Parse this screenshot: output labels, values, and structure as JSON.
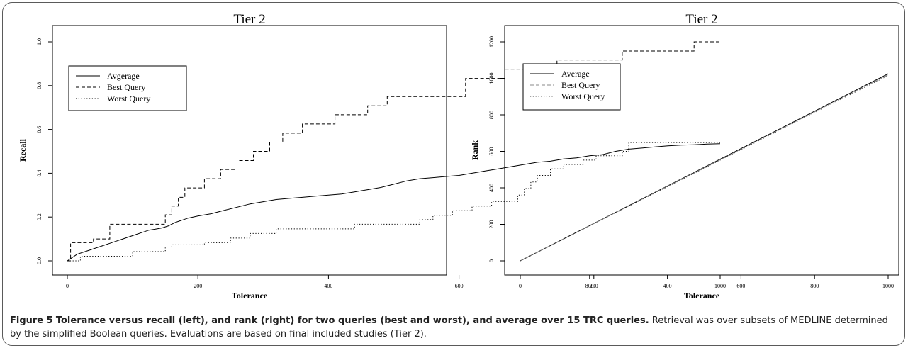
{
  "figure": {
    "caption_label": "Figure 5",
    "caption_title": "Tolerance versus recall (left), and rank (right) for two queries (best and worst), and average over 15 TRC queries.",
    "caption_text": "Retrieval was over subsets of MEDLINE determined by the simplified Boolean queries. Evaluations are based on final included studies (Tier 2)."
  },
  "chart_data": [
    {
      "type": "line",
      "title": "Tier 2",
      "xlabel": "Tolerance",
      "ylabel": "Recall",
      "xlim": [
        0,
        1000
      ],
      "ylim": [
        0,
        1.0
      ],
      "xticks": [
        "0",
        "200",
        "400",
        "600",
        "800",
        "1000"
      ],
      "yticks": [
        "0.0",
        "0.2",
        "0.4",
        "0.6",
        "0.8",
        "1.0"
      ],
      "legend_position": "top-left",
      "grid": false,
      "series": [
        {
          "name": "Avgerage",
          "style": "solid",
          "x": [
            0,
            5,
            10,
            15,
            25,
            35,
            45,
            55,
            65,
            75,
            85,
            95,
            105,
            115,
            125,
            135,
            145,
            155,
            165,
            175,
            185,
            200,
            220,
            240,
            260,
            280,
            300,
            320,
            340,
            360,
            380,
            400,
            420,
            440,
            460,
            480,
            500,
            520,
            540,
            560,
            580,
            600,
            620,
            640,
            660,
            680,
            700,
            720,
            740,
            760,
            780,
            800,
            820,
            840,
            860,
            880,
            900,
            920,
            940,
            960,
            980,
            1000
          ],
          "y": [
            0.0,
            0.01,
            0.02,
            0.03,
            0.04,
            0.05,
            0.06,
            0.07,
            0.08,
            0.09,
            0.1,
            0.11,
            0.12,
            0.13,
            0.14,
            0.145,
            0.15,
            0.16,
            0.175,
            0.185,
            0.195,
            0.205,
            0.215,
            0.23,
            0.245,
            0.26,
            0.27,
            0.28,
            0.285,
            0.29,
            0.295,
            0.3,
            0.305,
            0.315,
            0.325,
            0.335,
            0.35,
            0.365,
            0.375,
            0.38,
            0.385,
            0.39,
            0.4,
            0.41,
            0.42,
            0.43,
            0.44,
            0.45,
            0.455,
            0.465,
            0.47,
            0.48,
            0.485,
            0.5,
            0.51,
            0.515,
            0.52,
            0.525,
            0.528,
            0.53,
            0.533,
            0.535
          ]
        },
        {
          "name": "Best Query",
          "style": "dashed",
          "step": true,
          "x": [
            0,
            5,
            40,
            65,
            150,
            160,
            170,
            180,
            210,
            235,
            260,
            285,
            310,
            330,
            360,
            410,
            460,
            490,
            510,
            550,
            610,
            670,
            750,
            850,
            960,
            990,
            1000
          ],
          "y": [
            0.0,
            0.083,
            0.1,
            0.167,
            0.21,
            0.25,
            0.29,
            0.333,
            0.375,
            0.417,
            0.458,
            0.5,
            0.542,
            0.583,
            0.625,
            0.667,
            0.708,
            0.75,
            0.75,
            0.75,
            0.833,
            0.875,
            0.917,
            0.958,
            1.0,
            1.0,
            1.0
          ]
        },
        {
          "name": "Worst Query",
          "style": "dotted",
          "step": true,
          "x": [
            0,
            20,
            45,
            100,
            150,
            160,
            210,
            250,
            280,
            320,
            350,
            400,
            440,
            540,
            560,
            590,
            620,
            650,
            690,
            700,
            710,
            720,
            740,
            760,
            790,
            810,
            850,
            860,
            1000
          ],
          "y": [
            0.0,
            0.021,
            0.021,
            0.042,
            0.063,
            0.073,
            0.083,
            0.104,
            0.125,
            0.146,
            0.146,
            0.146,
            0.167,
            0.188,
            0.208,
            0.229,
            0.25,
            0.271,
            0.3,
            0.33,
            0.36,
            0.39,
            0.42,
            0.44,
            0.46,
            0.48,
            0.5,
            0.54,
            0.54
          ]
        }
      ]
    },
    {
      "type": "line",
      "title": "Tier 2",
      "xlabel": "Tolerance",
      "ylabel": "Rank",
      "xlim": [
        0,
        1000
      ],
      "ylim": [
        0,
        1200
      ],
      "xticks": [
        "0",
        "200",
        "400",
        "600",
        "800",
        "1000"
      ],
      "yticks": [
        "0",
        "200",
        "400",
        "600",
        "800",
        "1000",
        "1200"
      ],
      "legend_position": "top-left",
      "grid": false,
      "series": [
        {
          "name": "Average",
          "style": "solid",
          "color": "#000000",
          "x": [
            0,
            1000
          ],
          "y": [
            0,
            1025
          ]
        },
        {
          "name": "Best Query",
          "style": "dashed",
          "color": "#888888",
          "x": [
            0,
            1000
          ],
          "y": [
            0,
            1020
          ]
        },
        {
          "name": "Worst Query",
          "style": "dotted",
          "color": "#444444",
          "x": [
            0,
            1000
          ],
          "y": [
            0,
            1015
          ]
        }
      ]
    }
  ]
}
